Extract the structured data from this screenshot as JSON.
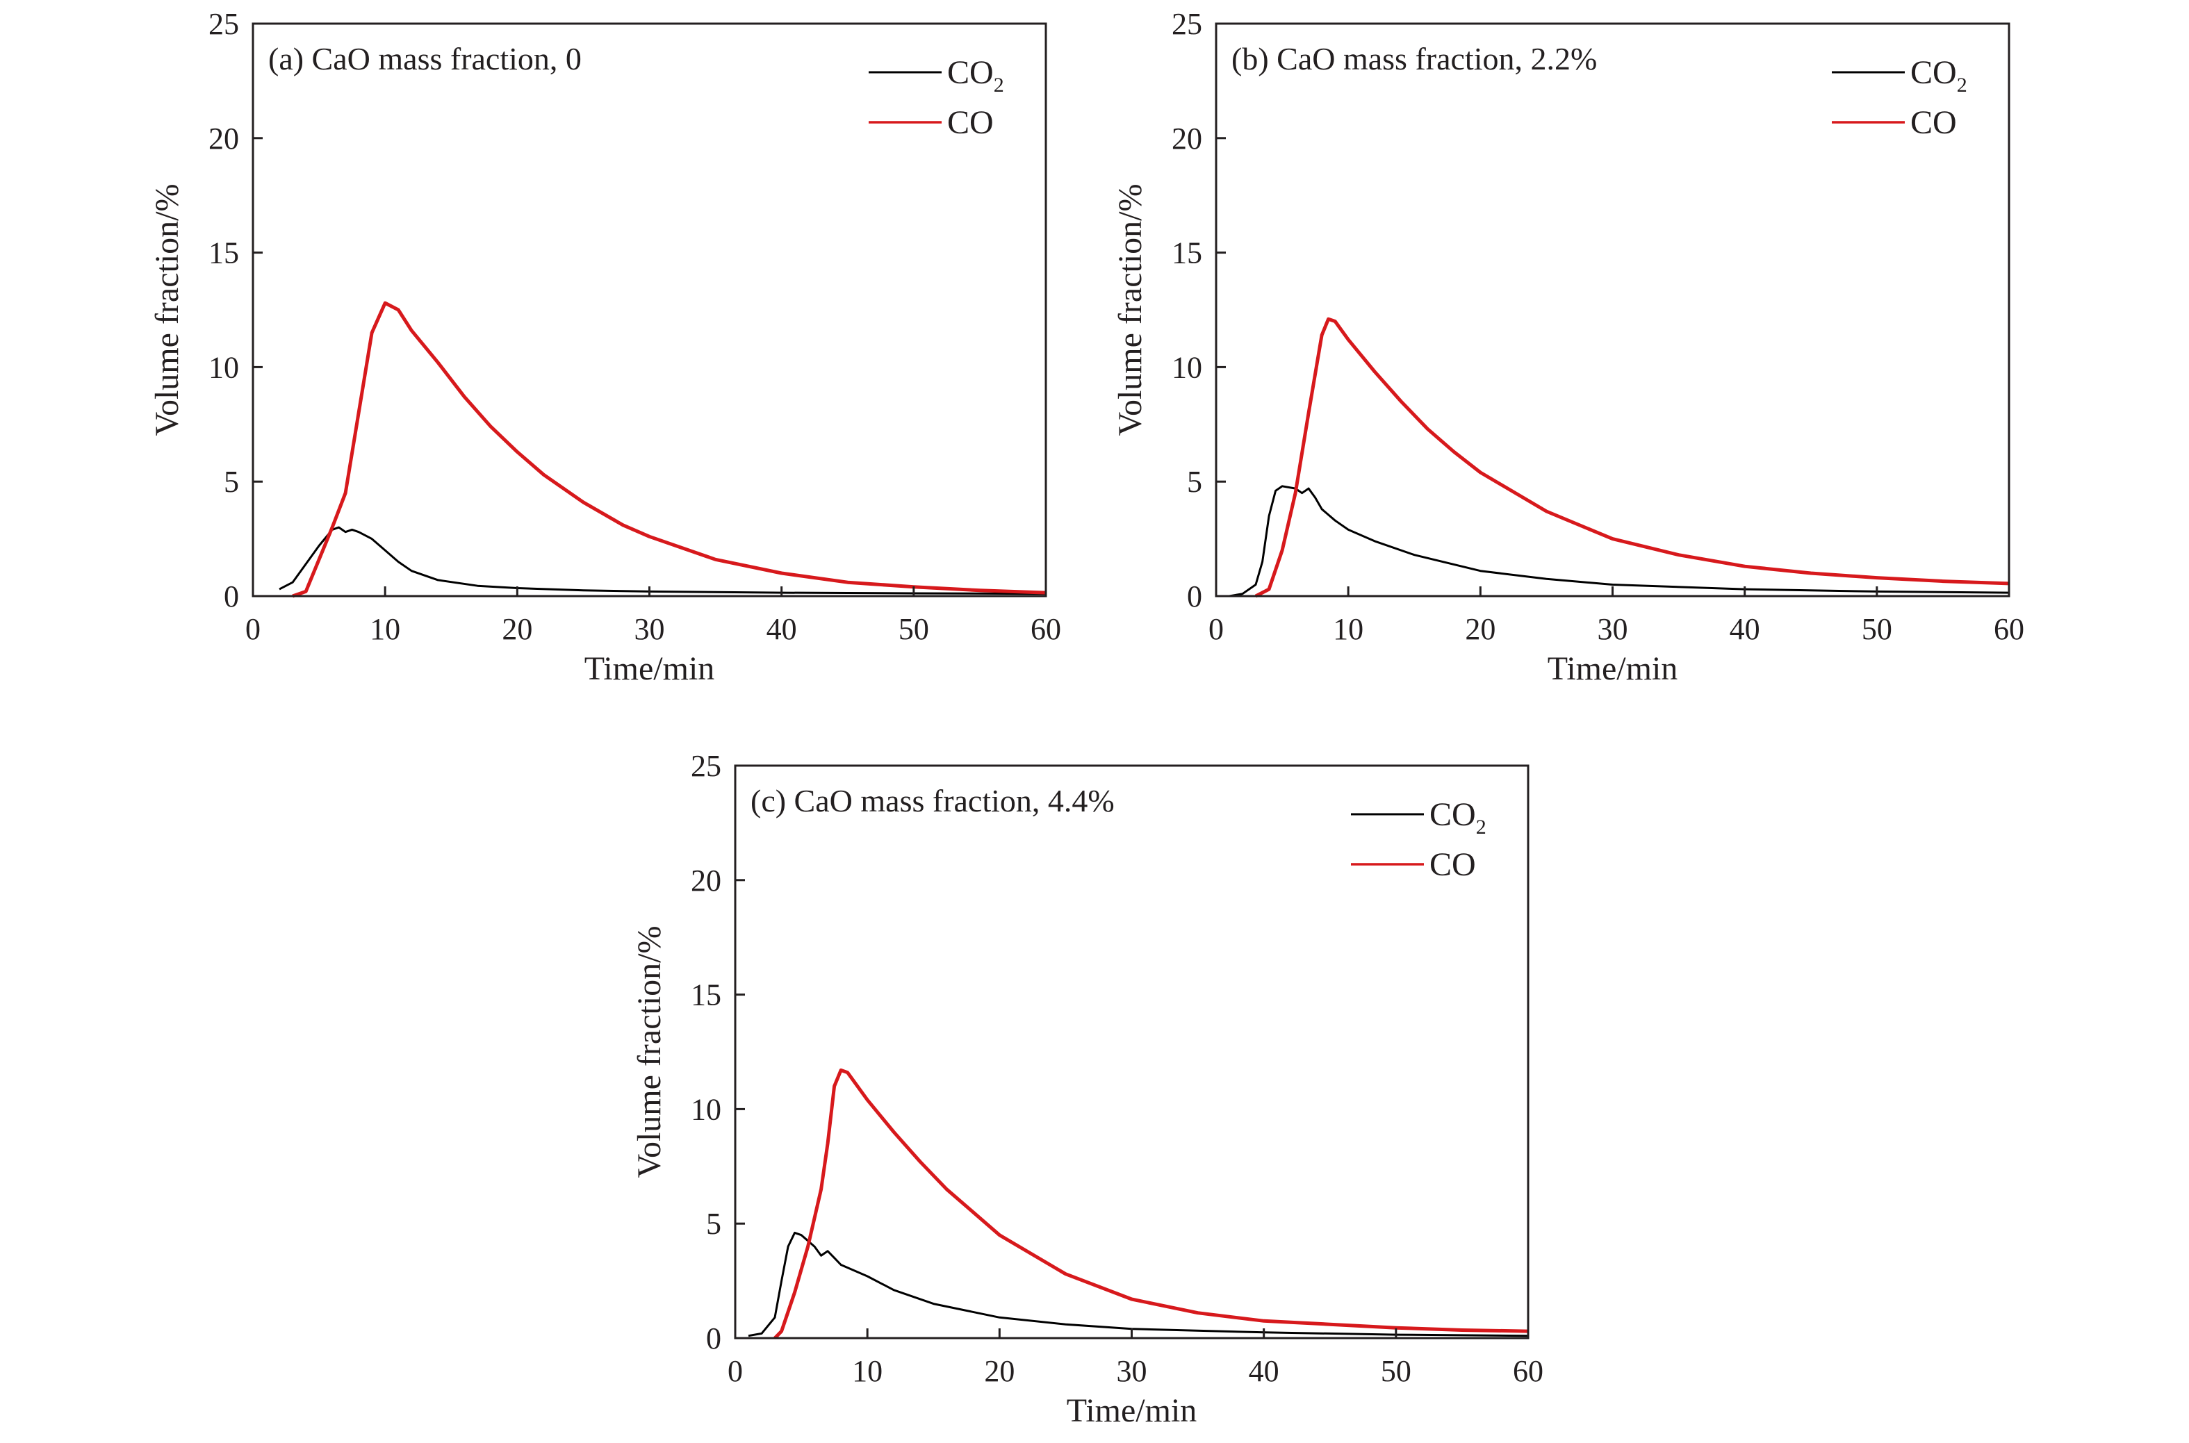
{
  "figure": {
    "colors": {
      "co2": "#000000",
      "co": "#d7191c",
      "axis": "#231f20"
    }
  },
  "chart_data": [
    {
      "type": "line",
      "panel_label": "(a) CaO mass fraction, 0",
      "xlabel": "Time/min",
      "ylabel": "Volume fraction/%",
      "xlim": [
        0,
        60
      ],
      "ylim": [
        0,
        25
      ],
      "xticks": [
        0,
        10,
        20,
        30,
        40,
        50,
        60
      ],
      "yticks": [
        0,
        5,
        10,
        15,
        20,
        25
      ],
      "grid": false,
      "legend": "top-right",
      "series": [
        {
          "name": "CO2",
          "legend_main": "CO",
          "legend_sub": "2",
          "color": "#000000",
          "points": [
            [
              2,
              0.3
            ],
            [
              3,
              0.6
            ],
            [
              4,
              1.4
            ],
            [
              5,
              2.2
            ],
            [
              6,
              2.9
            ],
            [
              6.5,
              3.0
            ],
            [
              7,
              2.8
            ],
            [
              7.5,
              2.9
            ],
            [
              8,
              2.8
            ],
            [
              9,
              2.5
            ],
            [
              10,
              2.0
            ],
            [
              11,
              1.5
            ],
            [
              12,
              1.1
            ],
            [
              14,
              0.7
            ],
            [
              17,
              0.45
            ],
            [
              20,
              0.35
            ],
            [
              25,
              0.25
            ],
            [
              30,
              0.2
            ],
            [
              40,
              0.15
            ],
            [
              50,
              0.12
            ],
            [
              60,
              0.1
            ]
          ]
        },
        {
          "name": "CO",
          "legend_main": "CO",
          "legend_sub": "",
          "color": "#d7191c",
          "points": [
            [
              3,
              0
            ],
            [
              4,
              0.2
            ],
            [
              5,
              1.6
            ],
            [
              6,
              3.0
            ],
            [
              7,
              4.5
            ],
            [
              8,
              8.0
            ],
            [
              9,
              11.5
            ],
            [
              10,
              12.8
            ],
            [
              11,
              12.5
            ],
            [
              12,
              11.6
            ],
            [
              14,
              10.2
            ],
            [
              16,
              8.7
            ],
            [
              18,
              7.4
            ],
            [
              20,
              6.3
            ],
            [
              22,
              5.3
            ],
            [
              25,
              4.1
            ],
            [
              28,
              3.1
            ],
            [
              30,
              2.6
            ],
            [
              35,
              1.6
            ],
            [
              40,
              1.0
            ],
            [
              45,
              0.6
            ],
            [
              50,
              0.4
            ],
            [
              55,
              0.25
            ],
            [
              60,
              0.15
            ]
          ]
        }
      ]
    },
    {
      "type": "line",
      "panel_label": "(b) CaO mass fraction, 2.2%",
      "xlabel": "Time/min",
      "ylabel": "Volume fraction/%",
      "xlim": [
        0,
        60
      ],
      "ylim": [
        0,
        25
      ],
      "xticks": [
        0,
        10,
        20,
        30,
        40,
        50,
        60
      ],
      "yticks": [
        0,
        5,
        10,
        15,
        20,
        25
      ],
      "grid": false,
      "legend": "top-right",
      "series": [
        {
          "name": "CO2",
          "legend_main": "CO",
          "legend_sub": "2",
          "color": "#000000",
          "points": [
            [
              1,
              0
            ],
            [
              2,
              0.1
            ],
            [
              3,
              0.5
            ],
            [
              3.5,
              1.5
            ],
            [
              4,
              3.5
            ],
            [
              4.5,
              4.6
            ],
            [
              5,
              4.8
            ],
            [
              6,
              4.7
            ],
            [
              6.5,
              4.5
            ],
            [
              7,
              4.7
            ],
            [
              7.5,
              4.3
            ],
            [
              8,
              3.8
            ],
            [
              9,
              3.3
            ],
            [
              10,
              2.9
            ],
            [
              12,
              2.4
            ],
            [
              15,
              1.8
            ],
            [
              20,
              1.1
            ],
            [
              25,
              0.75
            ],
            [
              30,
              0.5
            ],
            [
              40,
              0.3
            ],
            [
              50,
              0.2
            ],
            [
              60,
              0.15
            ]
          ]
        },
        {
          "name": "CO",
          "legend_main": "CO",
          "legend_sub": "",
          "color": "#d7191c",
          "points": [
            [
              3,
              0
            ],
            [
              4,
              0.3
            ],
            [
              5,
              2.0
            ],
            [
              6,
              4.5
            ],
            [
              7,
              8.0
            ],
            [
              8,
              11.4
            ],
            [
              8.5,
              12.1
            ],
            [
              9,
              12.0
            ],
            [
              10,
              11.2
            ],
            [
              12,
              9.8
            ],
            [
              14,
              8.5
            ],
            [
              16,
              7.3
            ],
            [
              18,
              6.3
            ],
            [
              20,
              5.4
            ],
            [
              25,
              3.7
            ],
            [
              30,
              2.5
            ],
            [
              35,
              1.8
            ],
            [
              40,
              1.3
            ],
            [
              45,
              1.0
            ],
            [
              50,
              0.8
            ],
            [
              55,
              0.65
            ],
            [
              60,
              0.55
            ]
          ]
        }
      ]
    },
    {
      "type": "line",
      "panel_label": "(c) CaO mass fraction, 4.4%",
      "xlabel": "Time/min",
      "ylabel": "Volume fraction/%",
      "xlim": [
        0,
        60
      ],
      "ylim": [
        0,
        25
      ],
      "xticks": [
        0,
        10,
        20,
        30,
        40,
        50,
        60
      ],
      "yticks": [
        0,
        5,
        10,
        15,
        20,
        25
      ],
      "grid": false,
      "legend": "top-right",
      "series": [
        {
          "name": "CO2",
          "legend_main": "CO",
          "legend_sub": "2",
          "color": "#000000",
          "points": [
            [
              1,
              0.1
            ],
            [
              2,
              0.2
            ],
            [
              3,
              0.9
            ],
            [
              3.5,
              2.5
            ],
            [
              4,
              4.0
            ],
            [
              4.5,
              4.6
            ],
            [
              5,
              4.5
            ],
            [
              6,
              4.0
            ],
            [
              6.5,
              3.6
            ],
            [
              7,
              3.8
            ],
            [
              7.5,
              3.5
            ],
            [
              8,
              3.2
            ],
            [
              10,
              2.7
            ],
            [
              12,
              2.1
            ],
            [
              15,
              1.5
            ],
            [
              20,
              0.9
            ],
            [
              25,
              0.6
            ],
            [
              30,
              0.4
            ],
            [
              40,
              0.25
            ],
            [
              50,
              0.15
            ],
            [
              60,
              0.1
            ]
          ]
        },
        {
          "name": "CO",
          "legend_main": "CO",
          "legend_sub": "",
          "color": "#d7191c",
          "points": [
            [
              3,
              0
            ],
            [
              3.5,
              0.3
            ],
            [
              4.5,
              2.0
            ],
            [
              5.5,
              4.0
            ],
            [
              6.5,
              6.5
            ],
            [
              7,
              8.5
            ],
            [
              7.5,
              11.0
            ],
            [
              8,
              11.7
            ],
            [
              8.5,
              11.6
            ],
            [
              10,
              10.4
            ],
            [
              12,
              9.0
            ],
            [
              14,
              7.7
            ],
            [
              16,
              6.5
            ],
            [
              18,
              5.5
            ],
            [
              20,
              4.5
            ],
            [
              25,
              2.8
            ],
            [
              30,
              1.7
            ],
            [
              35,
              1.1
            ],
            [
              40,
              0.75
            ],
            [
              45,
              0.6
            ],
            [
              50,
              0.45
            ],
            [
              55,
              0.35
            ],
            [
              60,
              0.3
            ]
          ]
        }
      ]
    }
  ]
}
